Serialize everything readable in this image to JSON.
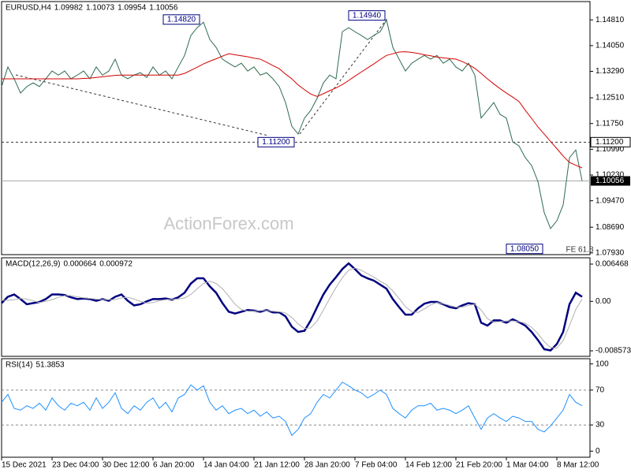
{
  "chart_data": [
    {
      "type": "line",
      "title": "EURUSD,H4",
      "ohlc": [
        1.09982,
        1.10073,
        1.09954,
        1.10056
      ],
      "ylim": [
        1.0788,
        1.1535
      ],
      "yticks": [
        {
          "value": 1.1481,
          "label": "1.14810"
        },
        {
          "value": 1.1405,
          "label": "1.14050"
        },
        {
          "value": 1.1329,
          "label": "1.13290"
        },
        {
          "value": 1.1251,
          "label": "1.12510"
        },
        {
          "value": 1.1175,
          "label": "1.11750"
        },
        {
          "value": 1.1099,
          "label": "1.10990"
        },
        {
          "value": 1.1023,
          "label": "1.10230"
        },
        {
          "value": 1.0947,
          "label": "1.09470"
        },
        {
          "value": 1.0869,
          "label": "1.08690"
        },
        {
          "value": 1.0793,
          "label": "1.07930"
        }
      ],
      "levels": [
        {
          "value": 1.112,
          "label": "1.11200"
        }
      ],
      "annotations": [
        {
          "value": 1.1482,
          "label": "1.14820"
        },
        {
          "value": 1.1494,
          "label": "1.14940"
        },
        {
          "value": 1.112,
          "label": "1.11200"
        },
        {
          "value": 1.0805,
          "label": "1.08050"
        },
        {
          "text": "FE 61.8"
        }
      ],
      "watermark": "ActionForex.com",
      "series": [
        {
          "color": "#2e6b4f",
          "values": [
            1.1284,
            1.1342,
            1.1307,
            1.1265,
            1.1284,
            1.1295,
            1.1284,
            1.1307,
            1.133,
            1.1318,
            1.133,
            1.1307,
            1.1318,
            1.133,
            1.1307,
            1.1342,
            1.1318,
            1.133,
            1.1365,
            1.1318,
            1.1307,
            1.1318,
            1.1325,
            1.1311,
            1.1342,
            1.1318,
            1.133,
            1.1307,
            1.1342,
            1.1376,
            1.1435,
            1.1458,
            1.1474,
            1.1423,
            1.14,
            1.1365,
            1.1353,
            1.1342,
            1.1353,
            1.133,
            1.1342,
            1.1318,
            1.1325,
            1.1307,
            1.1284,
            1.1237,
            1.1167,
            1.1144,
            1.1191,
            1.1214,
            1.1249,
            1.1295,
            1.1318,
            1.1307,
            1.1446,
            1.1458,
            1.1446,
            1.1435,
            1.1423,
            1.1435,
            1.1446,
            1.1481,
            1.14,
            1.1365,
            1.133,
            1.1353,
            1.1365,
            1.1376,
            1.1365,
            1.1376,
            1.1353,
            1.1365,
            1.1342,
            1.133,
            1.1353,
            1.1318,
            1.1191,
            1.1214,
            1.1237,
            1.1202,
            1.1191,
            1.1121,
            1.1109,
            1.1074,
            1.1051,
            1.1004,
            1.0912,
            1.0865,
            1.0888,
            1.0935,
            1.1074,
            1.1097,
            1.1006
          ]
        },
        {
          "color": "#d40000",
          "values": [
            1.1307,
            1.1307,
            1.1307,
            1.1307,
            1.1307,
            1.1307,
            1.1307,
            1.1307,
            1.1307,
            1.1307,
            1.1307,
            1.1307,
            1.1307,
            1.1308,
            1.1309,
            1.1311,
            1.1313,
            1.1315,
            1.1317,
            1.1318,
            1.1318,
            1.1318,
            1.1318,
            1.1318,
            1.1318,
            1.1318,
            1.1318,
            1.1318,
            1.1318,
            1.1323,
            1.1332,
            1.1341,
            1.1351,
            1.1359,
            1.1366,
            1.1374,
            1.1381,
            1.1378,
            1.1375,
            1.1372,
            1.1368,
            1.1365,
            1.1356,
            1.1346,
            1.1337,
            1.1321,
            1.1307,
            1.1289,
            1.1275,
            1.1262,
            1.1255,
            1.1263,
            1.1272,
            1.128,
            1.129,
            1.1302,
            1.1315,
            1.1327,
            1.1339,
            1.1351,
            1.1364,
            1.1376,
            1.1381,
            1.1386,
            1.1387,
            1.1385,
            1.1382,
            1.1378,
            1.1375,
            1.1371,
            1.1369,
            1.1367,
            1.1365,
            1.1358,
            1.1349,
            1.1338,
            1.1323,
            1.1307,
            1.1292,
            1.1278,
            1.1265,
            1.1253,
            1.124,
            1.1214,
            1.119,
            1.1165,
            1.1144,
            1.1122,
            1.1101,
            1.1079,
            1.106,
            1.1052,
            1.1044
          ]
        }
      ]
    },
    {
      "type": "line",
      "title": "MACD(12,26,9)",
      "readout": [
        0.000664,
        0.000972
      ],
      "ylim": [
        -0.00953,
        0.00756
      ],
      "yticks": [
        0.006468,
        {
          "value": 0,
          "label": "0.00"
        },
        -0.008573
      ],
      "series": [
        {
          "color": "#000080",
          "values": [
            -0.0003,
            0.0008,
            0.0012,
            0.0004,
            -0.0005,
            -0.0003,
            -0.0001,
            0.0004,
            0.0012,
            0.0012,
            0.0011,
            0.0007,
            0.0004,
            0.0005,
            0.0004,
            0.0001,
            0.0004,
            0.0001,
            0.0008,
            0.0012,
            0.0001,
            -0.0007,
            -0.0005,
            0,
            0.0004,
            0.0004,
            0.0005,
            0.0003,
            0.0007,
            0.0015,
            0.0031,
            0.004,
            0.004,
            0.0026,
            0.0015,
            -0.0003,
            -0.0018,
            -0.0021,
            -0.0018,
            -0.0015,
            -0.0016,
            -0.0018,
            -0.0015,
            -0.0019,
            -0.0019,
            -0.0026,
            -0.0044,
            -0.0053,
            -0.0051,
            -0.0033,
            -0.001,
            0.0012,
            0.0029,
            0.0042,
            0.0056,
            0.0066,
            0.0056,
            0.0045,
            0.004,
            0.0036,
            0.0029,
            0.0022,
            0.0004,
            -0.001,
            -0.0023,
            -0.0023,
            -0.0012,
            -0.0004,
            -0.0001,
            -0.0001,
            -0.0005,
            -0.001,
            -0.0012,
            -0.0007,
            -0.0003,
            -0.0005,
            -0.0037,
            -0.0042,
            -0.0033,
            -0.0033,
            -0.0037,
            -0.0031,
            -0.0036,
            -0.0042,
            -0.0053,
            -0.0067,
            -0.0083,
            -0.0085,
            -0.0074,
            -0.0053,
            -0.0005,
            0.0015,
            0.0008
          ]
        },
        {
          "color": "#b0b0b0",
          "values": [
            0.0002,
            0.0002,
            0.0003,
            0.0005,
            0.0004,
            0.0001,
            -0.0002,
            0,
            0.0003,
            0.0007,
            0.001,
            0.001,
            0.0008,
            0.0006,
            0.0005,
            0.0004,
            0.0003,
            0.0003,
            0.0003,
            0.0006,
            0.0007,
            0.0004,
            0,
            -0.0003,
            -0.0002,
            0.0001,
            0.0003,
            0.0004,
            0.0004,
            0.0006,
            0.0012,
            0.0022,
            0.0031,
            0.0035,
            0.0031,
            0.0022,
            0.0009,
            -0.0005,
            -0.0014,
            -0.0017,
            -0.0017,
            -0.0016,
            -0.0016,
            -0.0017,
            -0.0018,
            -0.002,
            -0.0028,
            -0.0039,
            -0.0047,
            -0.0046,
            -0.0034,
            -0.0015,
            0.0005,
            0.0024,
            0.0041,
            0.0054,
            0.0058,
            0.0054,
            0.0048,
            0.0042,
            0.0035,
            0.0029,
            0.0018,
            0.0005,
            -0.0009,
            -0.0018,
            -0.0019,
            -0.0013,
            -0.0006,
            -0.0002,
            -0.0004,
            -0.0007,
            -0.001,
            -0.001,
            -0.0007,
            -0.0005,
            -0.0015,
            -0.003,
            -0.0036,
            -0.0035,
            -0.0034,
            -0.0034,
            -0.0035,
            -0.0038,
            -0.0045,
            -0.0056,
            -0.007,
            -0.008,
            -0.0081,
            -0.0068,
            -0.0042,
            -0.0014,
            0.0004
          ]
        }
      ]
    },
    {
      "type": "line",
      "title": "RSI(14)",
      "readout": [
        51.3853
      ],
      "ylim": [
        -7,
        106
      ],
      "yticks": [
        100,
        70,
        30,
        0
      ],
      "guides": [
        70,
        30
      ],
      "categories": [
        "15 Dec 2021",
        null,
        null,
        null,
        null,
        null,
        null,
        null,
        "23 Dec 04:00",
        null,
        null,
        null,
        null,
        null,
        null,
        null,
        "30 Dec 12:00",
        null,
        null,
        null,
        null,
        null,
        null,
        null,
        "6 Jan 20:00",
        null,
        null,
        null,
        null,
        null,
        null,
        null,
        "14 Jan 04:00",
        null,
        null,
        null,
        null,
        null,
        null,
        null,
        "21 Jan 12:00",
        null,
        null,
        null,
        null,
        null,
        null,
        null,
        "28 Jan 20:00",
        null,
        null,
        null,
        null,
        null,
        null,
        null,
        "7 Feb 04:00",
        null,
        null,
        null,
        null,
        null,
        null,
        null,
        "14 Feb 12:00",
        null,
        null,
        null,
        null,
        null,
        null,
        null,
        "21 Feb 20:00",
        null,
        null,
        null,
        null,
        null,
        null,
        null,
        "1 Mar 04:00",
        null,
        null,
        null,
        null,
        null,
        null,
        null,
        "8 Mar 12:00",
        null,
        null,
        null,
        null
      ],
      "series": [
        {
          "color": "#1e90ff",
          "values": [
            56,
            65,
            49,
            47,
            52,
            49,
            55,
            47,
            61,
            52,
            47,
            55,
            52,
            56,
            47,
            61,
            49,
            56,
            67,
            49,
            43,
            52,
            47,
            56,
            61,
            49,
            56,
            45,
            61,
            65,
            76,
            70,
            75,
            56,
            47,
            52,
            43,
            47,
            49,
            43,
            47,
            40,
            45,
            38,
            40,
            34,
            18,
            25,
            38,
            43,
            56,
            65,
            61,
            70,
            79,
            75,
            70,
            67,
            61,
            65,
            70,
            65,
            49,
            43,
            38,
            47,
            52,
            52,
            55,
            47,
            49,
            47,
            43,
            47,
            52,
            38,
            25,
            38,
            43,
            38,
            34,
            40,
            38,
            34,
            34,
            25,
            22,
            29,
            38,
            47,
            65,
            56,
            52
          ]
        }
      ]
    }
  ]
}
